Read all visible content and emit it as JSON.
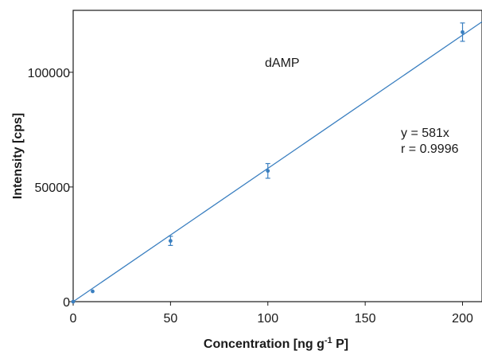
{
  "chart_data": {
    "type": "scatter",
    "title": "",
    "xlabel": "Concentration [ng g",
    "xlabel_sup": "-1",
    "xlabel_tail": " P]",
    "ylabel": "Intensity [cps]",
    "xlim": [
      0,
      210
    ],
    "ylim": [
      0,
      127000
    ],
    "x_ticks": [
      0,
      50,
      100,
      150,
      200
    ],
    "y_ticks": [
      0,
      50000,
      100000
    ],
    "grid": false,
    "series": [
      {
        "points": [
          {
            "x": 0,
            "y": 0,
            "err": 0
          },
          {
            "x": 10,
            "y": 4500,
            "err": 0
          },
          {
            "x": 50,
            "y": 26500,
            "err": 2000
          },
          {
            "x": 100,
            "y": 57000,
            "err": 3200
          },
          {
            "x": 200,
            "y": 117500,
            "err": 4000
          }
        ],
        "fit": {
          "slope": 581,
          "intercept": 0
        }
      }
    ],
    "annotations": {
      "compound": "dAMP",
      "equation": "y = 581x",
      "correlation": "r = 0.9996"
    },
    "colors": {
      "series": "#3a7fc0",
      "axis": "#1a1a1a"
    }
  }
}
